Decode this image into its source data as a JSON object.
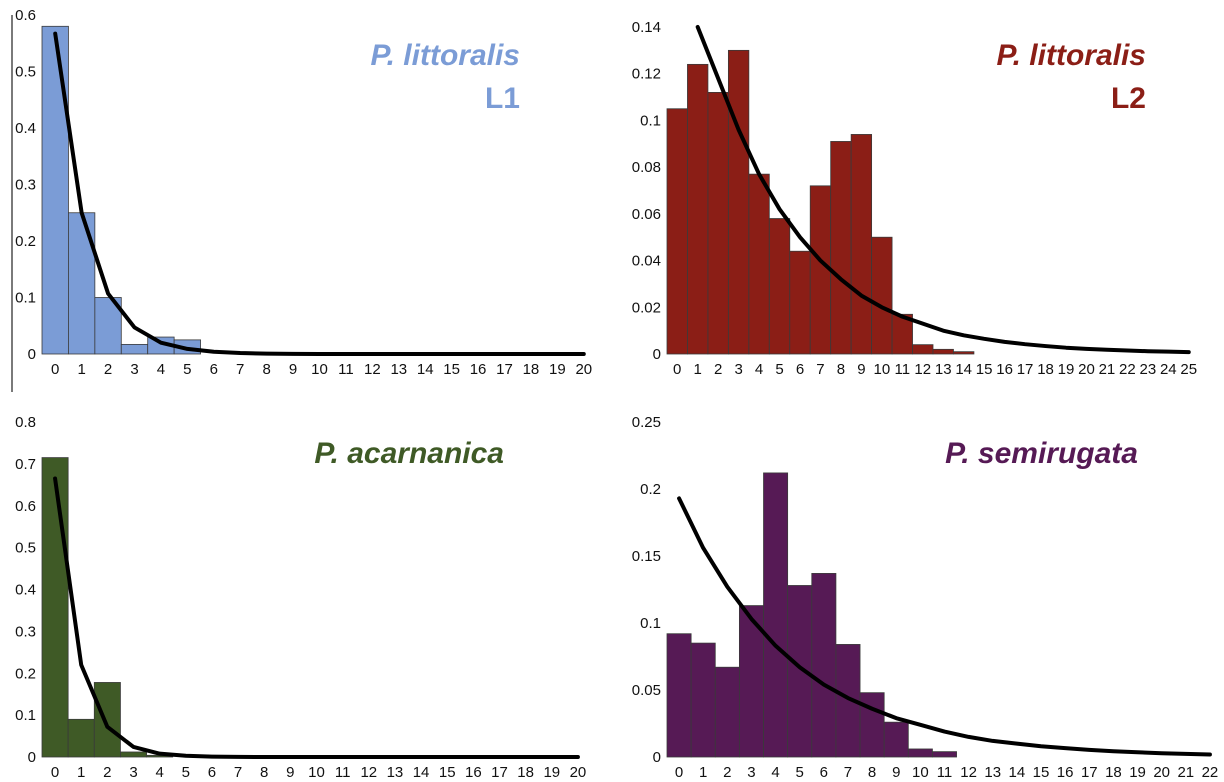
{
  "chart_data": [
    {
      "id": "littoralis_l1",
      "type": "bar",
      "title": "P. littoralis",
      "subtitle": "L1",
      "color": "#7b9cd6",
      "x": [
        0,
        1,
        2,
        3,
        4,
        5,
        6,
        7,
        8,
        9,
        10,
        11,
        12,
        13,
        14,
        15,
        16,
        17,
        18,
        19,
        20
      ],
      "x_tick_labels": [
        "0",
        "1",
        "2",
        "3",
        "4",
        "5",
        "6",
        "7",
        "8",
        "9",
        "10",
        "11",
        "12",
        "13",
        "14",
        "15",
        "16",
        "17",
        "18",
        "19",
        "20"
      ],
      "values": [
        0.58,
        0.25,
        0.1,
        0.017,
        0.03,
        0.025,
        0,
        0,
        0,
        0,
        0,
        0,
        0,
        0,
        0,
        0,
        0,
        0,
        0,
        0,
        0
      ],
      "curve": [
        0.567,
        0.25,
        0.107,
        0.047,
        0.02,
        0.009,
        0.004,
        0.0017,
        0.0007,
        0.0003,
        0,
        0,
        0,
        0,
        0,
        0,
        0,
        0,
        0,
        0,
        0
      ],
      "y_ticks": [
        0,
        0.1,
        0.2,
        0.3,
        0.4,
        0.5,
        0.6
      ],
      "y_tick_labels": [
        "0",
        "0.1",
        "0.2",
        "0.3",
        "0.4",
        "0.5",
        "0.6"
      ],
      "ylim": [
        0,
        0.6
      ],
      "xlabel": "",
      "ylabel": ""
    },
    {
      "id": "littoralis_l2",
      "type": "bar",
      "title": "P. littoralis",
      "subtitle": "L2",
      "color": "#8b1e16",
      "x": [
        0,
        1,
        2,
        3,
        4,
        5,
        6,
        7,
        8,
        9,
        10,
        11,
        12,
        13,
        14,
        15,
        16,
        17,
        18,
        19,
        20,
        21,
        22,
        23,
        24,
        25
      ],
      "x_tick_labels": [
        "0",
        "1",
        "2",
        "3",
        "4",
        "5",
        "6",
        "7",
        "8",
        "9",
        "10",
        "11",
        "12",
        "13",
        "14",
        "15",
        "16",
        "17",
        "18",
        "19",
        "20",
        "21",
        "22",
        "23",
        "24",
        "25"
      ],
      "values": [
        0.105,
        0.124,
        0.112,
        0.13,
        0.077,
        0.058,
        0.044,
        0.072,
        0.091,
        0.094,
        0.05,
        0.017,
        0.004,
        0.002,
        0.001,
        0,
        0,
        0,
        0,
        0,
        0,
        0,
        0,
        0,
        0,
        0
      ],
      "curve_x": [
        1,
        2,
        3,
        4,
        5,
        6,
        7,
        8,
        9,
        10,
        11,
        12,
        13,
        14,
        15,
        16,
        17,
        18,
        19,
        20,
        21,
        22,
        23,
        24,
        25
      ],
      "curve": [
        0.14,
        0.118,
        0.096,
        0.077,
        0.062,
        0.05,
        0.04,
        0.032,
        0.025,
        0.02,
        0.016,
        0.013,
        0.01,
        0.008,
        0.0065,
        0.0052,
        0.0042,
        0.0034,
        0.0027,
        0.0022,
        0.0018,
        0.0015,
        0.0012,
        0.001,
        0.0008
      ],
      "y_ticks": [
        0,
        0.02,
        0.04,
        0.06,
        0.08,
        0.1,
        0.12,
        0.14
      ],
      "y_tick_labels": [
        "0",
        "0.02",
        "0.04",
        "0.06",
        "0.08",
        "0.1",
        "0.12",
        "0.14"
      ],
      "ylim": [
        0,
        0.14
      ],
      "xlabel": "",
      "ylabel": ""
    },
    {
      "id": "acarnanica",
      "type": "bar",
      "title": "P. acarnanica",
      "subtitle": "",
      "color": "#3f5a26",
      "x": [
        0,
        1,
        2,
        3,
        4,
        5,
        6,
        7,
        8,
        9,
        10,
        11,
        12,
        13,
        14,
        15,
        16,
        17,
        18,
        19,
        20
      ],
      "x_tick_labels": [
        "0",
        "1",
        "2",
        "3",
        "4",
        "5",
        "6",
        "7",
        "8",
        "9",
        "10",
        "11",
        "12",
        "13",
        "14",
        "15",
        "16",
        "17",
        "18",
        "19",
        "20"
      ],
      "values": [
        0.715,
        0.09,
        0.178,
        0.012,
        0.004,
        0,
        0,
        0,
        0,
        0,
        0,
        0,
        0,
        0,
        0,
        0,
        0,
        0,
        0,
        0,
        0
      ],
      "curve": [
        0.665,
        0.22,
        0.072,
        0.024,
        0.008,
        0.003,
        0.001,
        0.0003,
        0,
        0,
        0,
        0,
        0,
        0,
        0,
        0,
        0,
        0,
        0,
        0,
        0
      ],
      "y_ticks": [
        0,
        0.1,
        0.2,
        0.3,
        0.4,
        0.5,
        0.6,
        0.7,
        0.8
      ],
      "y_tick_labels": [
        "0",
        "0.1",
        "0.2",
        "0.3",
        "0.4",
        "0.5",
        "0.6",
        "0.7",
        "0.8"
      ],
      "ylim": [
        0,
        0.8
      ],
      "xlabel": "",
      "ylabel": ""
    },
    {
      "id": "semirugata",
      "type": "bar",
      "title": "P. semirugata",
      "subtitle": "",
      "color": "#561a55",
      "x": [
        0,
        1,
        2,
        3,
        4,
        5,
        6,
        7,
        8,
        9,
        10,
        11,
        12,
        13,
        14,
        15,
        16,
        17,
        18,
        19,
        20,
        21,
        22
      ],
      "x_tick_labels": [
        "0",
        "1",
        "2",
        "3",
        "4",
        "5",
        "6",
        "7",
        "8",
        "9",
        "10",
        "11",
        "12",
        "13",
        "14",
        "15",
        "16",
        "17",
        "18",
        "19",
        "20",
        "21",
        "22"
      ],
      "values": [
        0.092,
        0.085,
        0.067,
        0.113,
        0.212,
        0.128,
        0.137,
        0.084,
        0.048,
        0.026,
        0.006,
        0.004,
        0,
        0,
        0,
        0,
        0,
        0,
        0,
        0,
        0,
        0,
        0
      ],
      "curve": [
        0.193,
        0.156,
        0.127,
        0.103,
        0.083,
        0.067,
        0.054,
        0.044,
        0.036,
        0.029,
        0.024,
        0.019,
        0.015,
        0.012,
        0.01,
        0.008,
        0.0066,
        0.0053,
        0.0043,
        0.0035,
        0.0028,
        0.0023,
        0.0019
      ],
      "y_ticks": [
        0,
        0.05,
        0.1,
        0.15,
        0.2,
        0.25
      ],
      "y_tick_labels": [
        "0",
        "0.05",
        "0.1",
        "0.15",
        "0.2",
        "0.25"
      ],
      "ylim": [
        0,
        0.25
      ],
      "xlabel": "",
      "ylabel": ""
    }
  ]
}
